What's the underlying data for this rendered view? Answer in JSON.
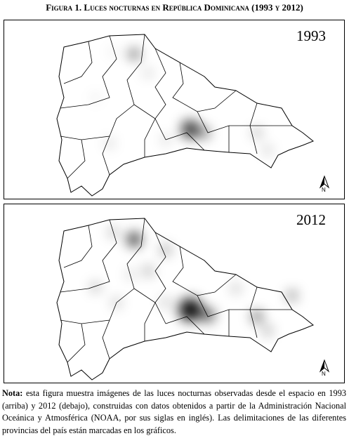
{
  "header": {
    "title": "Figura 1. Luces nocturnas en República Dominicana (1993 y 2012)"
  },
  "panels": [
    {
      "label": "1993",
      "north": "N"
    },
    {
      "label": "2012",
      "north": "N"
    }
  ],
  "note": {
    "label": "Nota:",
    "text": "esta figura muestra imágenes de las luces nocturnas observadas desde el espacio en 1993 (arriba) y 2012 (debajo), construidas con datos obtenidos a partir de la Administración Nacional Oceánica y Atmosférica (NOAA, por sus siglas en inglés). Las delimitaciones de las diferentes provincias del país están marcadas en los gráficos."
  }
}
